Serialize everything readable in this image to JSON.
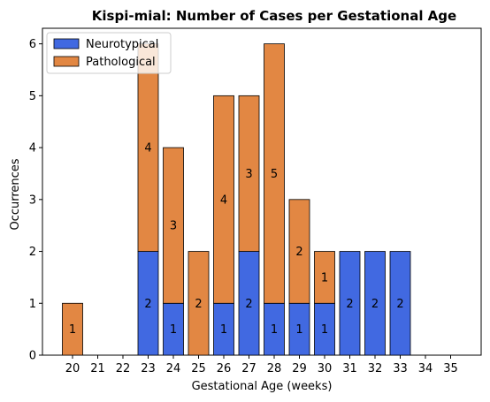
{
  "chart_data": {
    "type": "bar",
    "stacked": true,
    "title": "Kispi-mial: Number of Cases per Gestational Age",
    "xlabel": "Gestational Age (weeks)",
    "ylabel": "Occurrences",
    "ylim": [
      0,
      6.3
    ],
    "yticks": [
      0,
      1,
      2,
      3,
      4,
      5,
      6
    ],
    "categories": [
      "20",
      "21",
      "22",
      "23",
      "24",
      "25",
      "26",
      "27",
      "28",
      "29",
      "30",
      "31",
      "32",
      "33",
      "34",
      "35"
    ],
    "legend_position": "top-left",
    "series": [
      {
        "name": "Neurotypical",
        "color": "#4169e1",
        "values": [
          0,
          0,
          0,
          2,
          1,
          0,
          1,
          2,
          1,
          1,
          1,
          2,
          2,
          2,
          0,
          0
        ]
      },
      {
        "name": "Pathological",
        "color": "#e28743",
        "values": [
          1,
          0,
          0,
          4,
          3,
          2,
          4,
          3,
          5,
          2,
          1,
          0,
          0,
          0,
          0,
          0
        ]
      }
    ]
  }
}
